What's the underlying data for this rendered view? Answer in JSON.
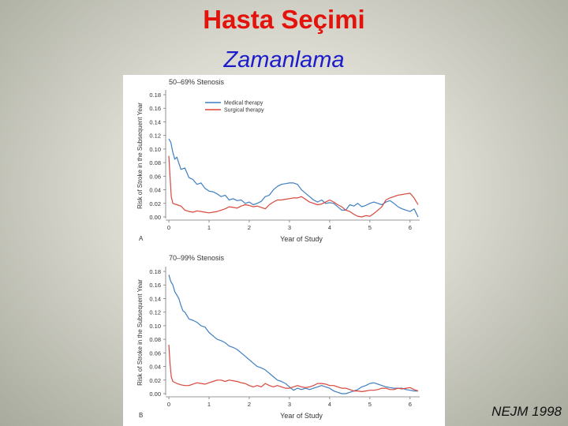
{
  "slide": {
    "title": "Hasta Seçimi",
    "subtitle": "Zamanlama",
    "citation": "NEJM 1998"
  },
  "colors": {
    "title": "#e3120b",
    "subtitle": "#1c1ccc",
    "medical": "#3f7fc0",
    "surgical": "#d8473c"
  },
  "chart_data": [
    {
      "type": "line",
      "panel_label": "A",
      "title": "50–69% Stenosis",
      "xlabel": "Year of Study",
      "ylabel": "Risk of Stroke in the Subsequent Year",
      "xlim": [
        0,
        6.2
      ],
      "ylim": [
        0,
        0.18
      ],
      "xticks": [
        "0",
        "1",
        "2",
        "3",
        "4",
        "5",
        "6"
      ],
      "yticks": [
        "0.00",
        "0.02",
        "0.04",
        "0.06",
        "0.08",
        "0.10",
        "0.12",
        "0.14",
        "0.16",
        "0.18"
      ],
      "legend": "top-left",
      "series": [
        {
          "name": "Medical therapy",
          "color": "#3f7fc0",
          "points": [
            [
              0,
              0.115
            ],
            [
              0.05,
              0.11
            ],
            [
              0.1,
              0.095
            ],
            [
              0.15,
              0.085
            ],
            [
              0.2,
              0.088
            ],
            [
              0.3,
              0.07
            ],
            [
              0.4,
              0.072
            ],
            [
              0.5,
              0.058
            ],
            [
              0.6,
              0.055
            ],
            [
              0.7,
              0.048
            ],
            [
              0.8,
              0.05
            ],
            [
              0.9,
              0.042
            ],
            [
              1.0,
              0.038
            ],
            [
              1.1,
              0.037
            ],
            [
              1.2,
              0.034
            ],
            [
              1.3,
              0.03
            ],
            [
              1.4,
              0.032
            ],
            [
              1.5,
              0.025
            ],
            [
              1.6,
              0.027
            ],
            [
              1.7,
              0.024
            ],
            [
              1.8,
              0.025
            ],
            [
              1.9,
              0.02
            ],
            [
              2.0,
              0.022
            ],
            [
              2.1,
              0.018
            ],
            [
              2.2,
              0.02
            ],
            [
              2.3,
              0.023
            ],
            [
              2.4,
              0.03
            ],
            [
              2.5,
              0.032
            ],
            [
              2.6,
              0.04
            ],
            [
              2.7,
              0.045
            ],
            [
              2.8,
              0.048
            ],
            [
              2.9,
              0.049
            ],
            [
              3.0,
              0.05
            ],
            [
              3.1,
              0.05
            ],
            [
              3.2,
              0.048
            ],
            [
              3.3,
              0.04
            ],
            [
              3.4,
              0.035
            ],
            [
              3.5,
              0.03
            ],
            [
              3.6,
              0.025
            ],
            [
              3.7,
              0.022
            ],
            [
              3.8,
              0.025
            ],
            [
              3.9,
              0.02
            ],
            [
              4.0,
              0.021
            ],
            [
              4.1,
              0.02
            ],
            [
              4.2,
              0.015
            ],
            [
              4.3,
              0.01
            ],
            [
              4.4,
              0.01
            ],
            [
              4.5,
              0.018
            ],
            [
              4.6,
              0.016
            ],
            [
              4.7,
              0.02
            ],
            [
              4.8,
              0.015
            ],
            [
              4.9,
              0.017
            ],
            [
              5.0,
              0.02
            ],
            [
              5.1,
              0.022
            ],
            [
              5.2,
              0.02
            ],
            [
              5.3,
              0.018
            ],
            [
              5.4,
              0.022
            ],
            [
              5.5,
              0.024
            ],
            [
              5.6,
              0.02
            ],
            [
              5.7,
              0.015
            ],
            [
              5.8,
              0.012
            ],
            [
              5.9,
              0.01
            ],
            [
              6.0,
              0.008
            ],
            [
              6.1,
              0.012
            ],
            [
              6.2,
              0.0
            ]
          ]
        },
        {
          "name": "Surgical therapy",
          "color": "#d8473c",
          "points": [
            [
              0,
              0.09
            ],
            [
              0.03,
              0.06
            ],
            [
              0.06,
              0.03
            ],
            [
              0.1,
              0.02
            ],
            [
              0.2,
              0.018
            ],
            [
              0.3,
              0.016
            ],
            [
              0.4,
              0.01
            ],
            [
              0.5,
              0.008
            ],
            [
              0.6,
              0.007
            ],
            [
              0.7,
              0.009
            ],
            [
              0.8,
              0.008
            ],
            [
              0.9,
              0.007
            ],
            [
              1.0,
              0.006
            ],
            [
              1.1,
              0.007
            ],
            [
              1.2,
              0.008
            ],
            [
              1.3,
              0.01
            ],
            [
              1.4,
              0.012
            ],
            [
              1.5,
              0.015
            ],
            [
              1.6,
              0.014
            ],
            [
              1.7,
              0.013
            ],
            [
              1.8,
              0.016
            ],
            [
              1.9,
              0.018
            ],
            [
              2.0,
              0.017
            ],
            [
              2.1,
              0.015
            ],
            [
              2.2,
              0.016
            ],
            [
              2.3,
              0.014
            ],
            [
              2.4,
              0.012
            ],
            [
              2.5,
              0.018
            ],
            [
              2.6,
              0.022
            ],
            [
              2.7,
              0.025
            ],
            [
              2.8,
              0.025
            ],
            [
              2.9,
              0.026
            ],
            [
              3.0,
              0.027
            ],
            [
              3.1,
              0.028
            ],
            [
              3.2,
              0.028
            ],
            [
              3.3,
              0.03
            ],
            [
              3.4,
              0.026
            ],
            [
              3.5,
              0.022
            ],
            [
              3.6,
              0.02
            ],
            [
              3.7,
              0.018
            ],
            [
              3.8,
              0.019
            ],
            [
              3.9,
              0.022
            ],
            [
              4.0,
              0.025
            ],
            [
              4.1,
              0.022
            ],
            [
              4.2,
              0.018
            ],
            [
              4.3,
              0.015
            ],
            [
              4.4,
              0.01
            ],
            [
              4.5,
              0.008
            ],
            [
              4.6,
              0.004
            ],
            [
              4.7,
              0.001
            ],
            [
              4.8,
              0.0
            ],
            [
              4.9,
              0.002
            ],
            [
              5.0,
              0.001
            ],
            [
              5.1,
              0.005
            ],
            [
              5.2,
              0.01
            ],
            [
              5.3,
              0.015
            ],
            [
              5.4,
              0.025
            ],
            [
              5.5,
              0.028
            ],
            [
              5.6,
              0.03
            ],
            [
              5.7,
              0.032
            ],
            [
              5.8,
              0.033
            ],
            [
              5.9,
              0.034
            ],
            [
              6.0,
              0.035
            ],
            [
              6.1,
              0.028
            ],
            [
              6.2,
              0.018
            ]
          ]
        }
      ]
    },
    {
      "type": "line",
      "panel_label": "B",
      "title": "70–99% Stenosis",
      "xlabel": "Year of Study",
      "ylabel": "Risk of Stroke in the Subsequent Year",
      "xlim": [
        0,
        6.2
      ],
      "ylim": [
        0,
        0.18
      ],
      "xticks": [
        "0",
        "1",
        "2",
        "3",
        "4",
        "5",
        "6"
      ],
      "yticks": [
        "0.00",
        "0.02",
        "0.04",
        "0.06",
        "0.08",
        "0.10",
        "0.12",
        "0.14",
        "0.16",
        "0.18"
      ],
      "series": [
        {
          "name": "Medical therapy",
          "color": "#3f7fc0",
          "points": [
            [
              0,
              0.175
            ],
            [
              0.05,
              0.165
            ],
            [
              0.1,
              0.16
            ],
            [
              0.15,
              0.15
            ],
            [
              0.2,
              0.145
            ],
            [
              0.25,
              0.14
            ],
            [
              0.3,
              0.13
            ],
            [
              0.35,
              0.122
            ],
            [
              0.4,
              0.12
            ],
            [
              0.5,
              0.11
            ],
            [
              0.6,
              0.108
            ],
            [
              0.7,
              0.105
            ],
            [
              0.8,
              0.1
            ],
            [
              0.9,
              0.098
            ],
            [
              1.0,
              0.09
            ],
            [
              1.1,
              0.085
            ],
            [
              1.2,
              0.08
            ],
            [
              1.3,
              0.078
            ],
            [
              1.4,
              0.075
            ],
            [
              1.5,
              0.07
            ],
            [
              1.6,
              0.068
            ],
            [
              1.7,
              0.065
            ],
            [
              1.8,
              0.06
            ],
            [
              1.9,
              0.055
            ],
            [
              2.0,
              0.05
            ],
            [
              2.1,
              0.045
            ],
            [
              2.2,
              0.04
            ],
            [
              2.3,
              0.038
            ],
            [
              2.4,
              0.035
            ],
            [
              2.5,
              0.03
            ],
            [
              2.6,
              0.025
            ],
            [
              2.7,
              0.02
            ],
            [
              2.8,
              0.018
            ],
            [
              2.9,
              0.015
            ],
            [
              3.0,
              0.01
            ],
            [
              3.1,
              0.005
            ],
            [
              3.2,
              0.008
            ],
            [
              3.3,
              0.006
            ],
            [
              3.4,
              0.008
            ],
            [
              3.5,
              0.006
            ],
            [
              3.6,
              0.008
            ],
            [
              3.7,
              0.01
            ],
            [
              3.8,
              0.012
            ],
            [
              3.9,
              0.01
            ],
            [
              4.0,
              0.008
            ],
            [
              4.1,
              0.004
            ],
            [
              4.2,
              0.002
            ],
            [
              4.3,
              0.0
            ],
            [
              4.4,
              0.0
            ],
            [
              4.5,
              0.002
            ],
            [
              4.6,
              0.004
            ],
            [
              4.7,
              0.006
            ],
            [
              4.8,
              0.01
            ],
            [
              4.9,
              0.012
            ],
            [
              5.0,
              0.015
            ],
            [
              5.1,
              0.016
            ],
            [
              5.2,
              0.014
            ],
            [
              5.3,
              0.012
            ],
            [
              5.4,
              0.01
            ],
            [
              5.5,
              0.009
            ],
            [
              5.6,
              0.008
            ],
            [
              5.7,
              0.008
            ],
            [
              5.8,
              0.008
            ],
            [
              5.9,
              0.006
            ],
            [
              6.0,
              0.005
            ],
            [
              6.1,
              0.004
            ],
            [
              6.2,
              0.004
            ]
          ]
        },
        {
          "name": "Surgical therapy",
          "color": "#d8473c",
          "points": [
            [
              0,
              0.072
            ],
            [
              0.03,
              0.045
            ],
            [
              0.06,
              0.025
            ],
            [
              0.1,
              0.018
            ],
            [
              0.2,
              0.015
            ],
            [
              0.3,
              0.013
            ],
            [
              0.4,
              0.012
            ],
            [
              0.5,
              0.012
            ],
            [
              0.6,
              0.014
            ],
            [
              0.7,
              0.016
            ],
            [
              0.8,
              0.015
            ],
            [
              0.9,
              0.014
            ],
            [
              1.0,
              0.016
            ],
            [
              1.1,
              0.018
            ],
            [
              1.2,
              0.02
            ],
            [
              1.3,
              0.02
            ],
            [
              1.4,
              0.018
            ],
            [
              1.5,
              0.02
            ],
            [
              1.6,
              0.019
            ],
            [
              1.7,
              0.018
            ],
            [
              1.8,
              0.016
            ],
            [
              1.9,
              0.015
            ],
            [
              2.0,
              0.012
            ],
            [
              2.1,
              0.01
            ],
            [
              2.2,
              0.012
            ],
            [
              2.3,
              0.01
            ],
            [
              2.4,
              0.015
            ],
            [
              2.5,
              0.012
            ],
            [
              2.6,
              0.01
            ],
            [
              2.7,
              0.012
            ],
            [
              2.8,
              0.01
            ],
            [
              2.9,
              0.008
            ],
            [
              3.0,
              0.008
            ],
            [
              3.1,
              0.01
            ],
            [
              3.2,
              0.012
            ],
            [
              3.3,
              0.01
            ],
            [
              3.4,
              0.009
            ],
            [
              3.5,
              0.01
            ],
            [
              3.6,
              0.012
            ],
            [
              3.7,
              0.015
            ],
            [
              3.8,
              0.015
            ],
            [
              3.9,
              0.014
            ],
            [
              4.0,
              0.012
            ],
            [
              4.1,
              0.012
            ],
            [
              4.2,
              0.01
            ],
            [
              4.3,
              0.008
            ],
            [
              4.4,
              0.008
            ],
            [
              4.5,
              0.006
            ],
            [
              4.6,
              0.004
            ],
            [
              4.7,
              0.004
            ],
            [
              4.8,
              0.003
            ],
            [
              4.9,
              0.004
            ],
            [
              5.0,
              0.005
            ],
            [
              5.1,
              0.005
            ],
            [
              5.2,
              0.006
            ],
            [
              5.3,
              0.008
            ],
            [
              5.4,
              0.008
            ],
            [
              5.5,
              0.006
            ],
            [
              5.6,
              0.006
            ],
            [
              5.7,
              0.008
            ],
            [
              5.8,
              0.007
            ],
            [
              5.9,
              0.008
            ],
            [
              6.0,
              0.009
            ],
            [
              6.1,
              0.006
            ],
            [
              6.2,
              0.004
            ]
          ]
        }
      ]
    }
  ]
}
